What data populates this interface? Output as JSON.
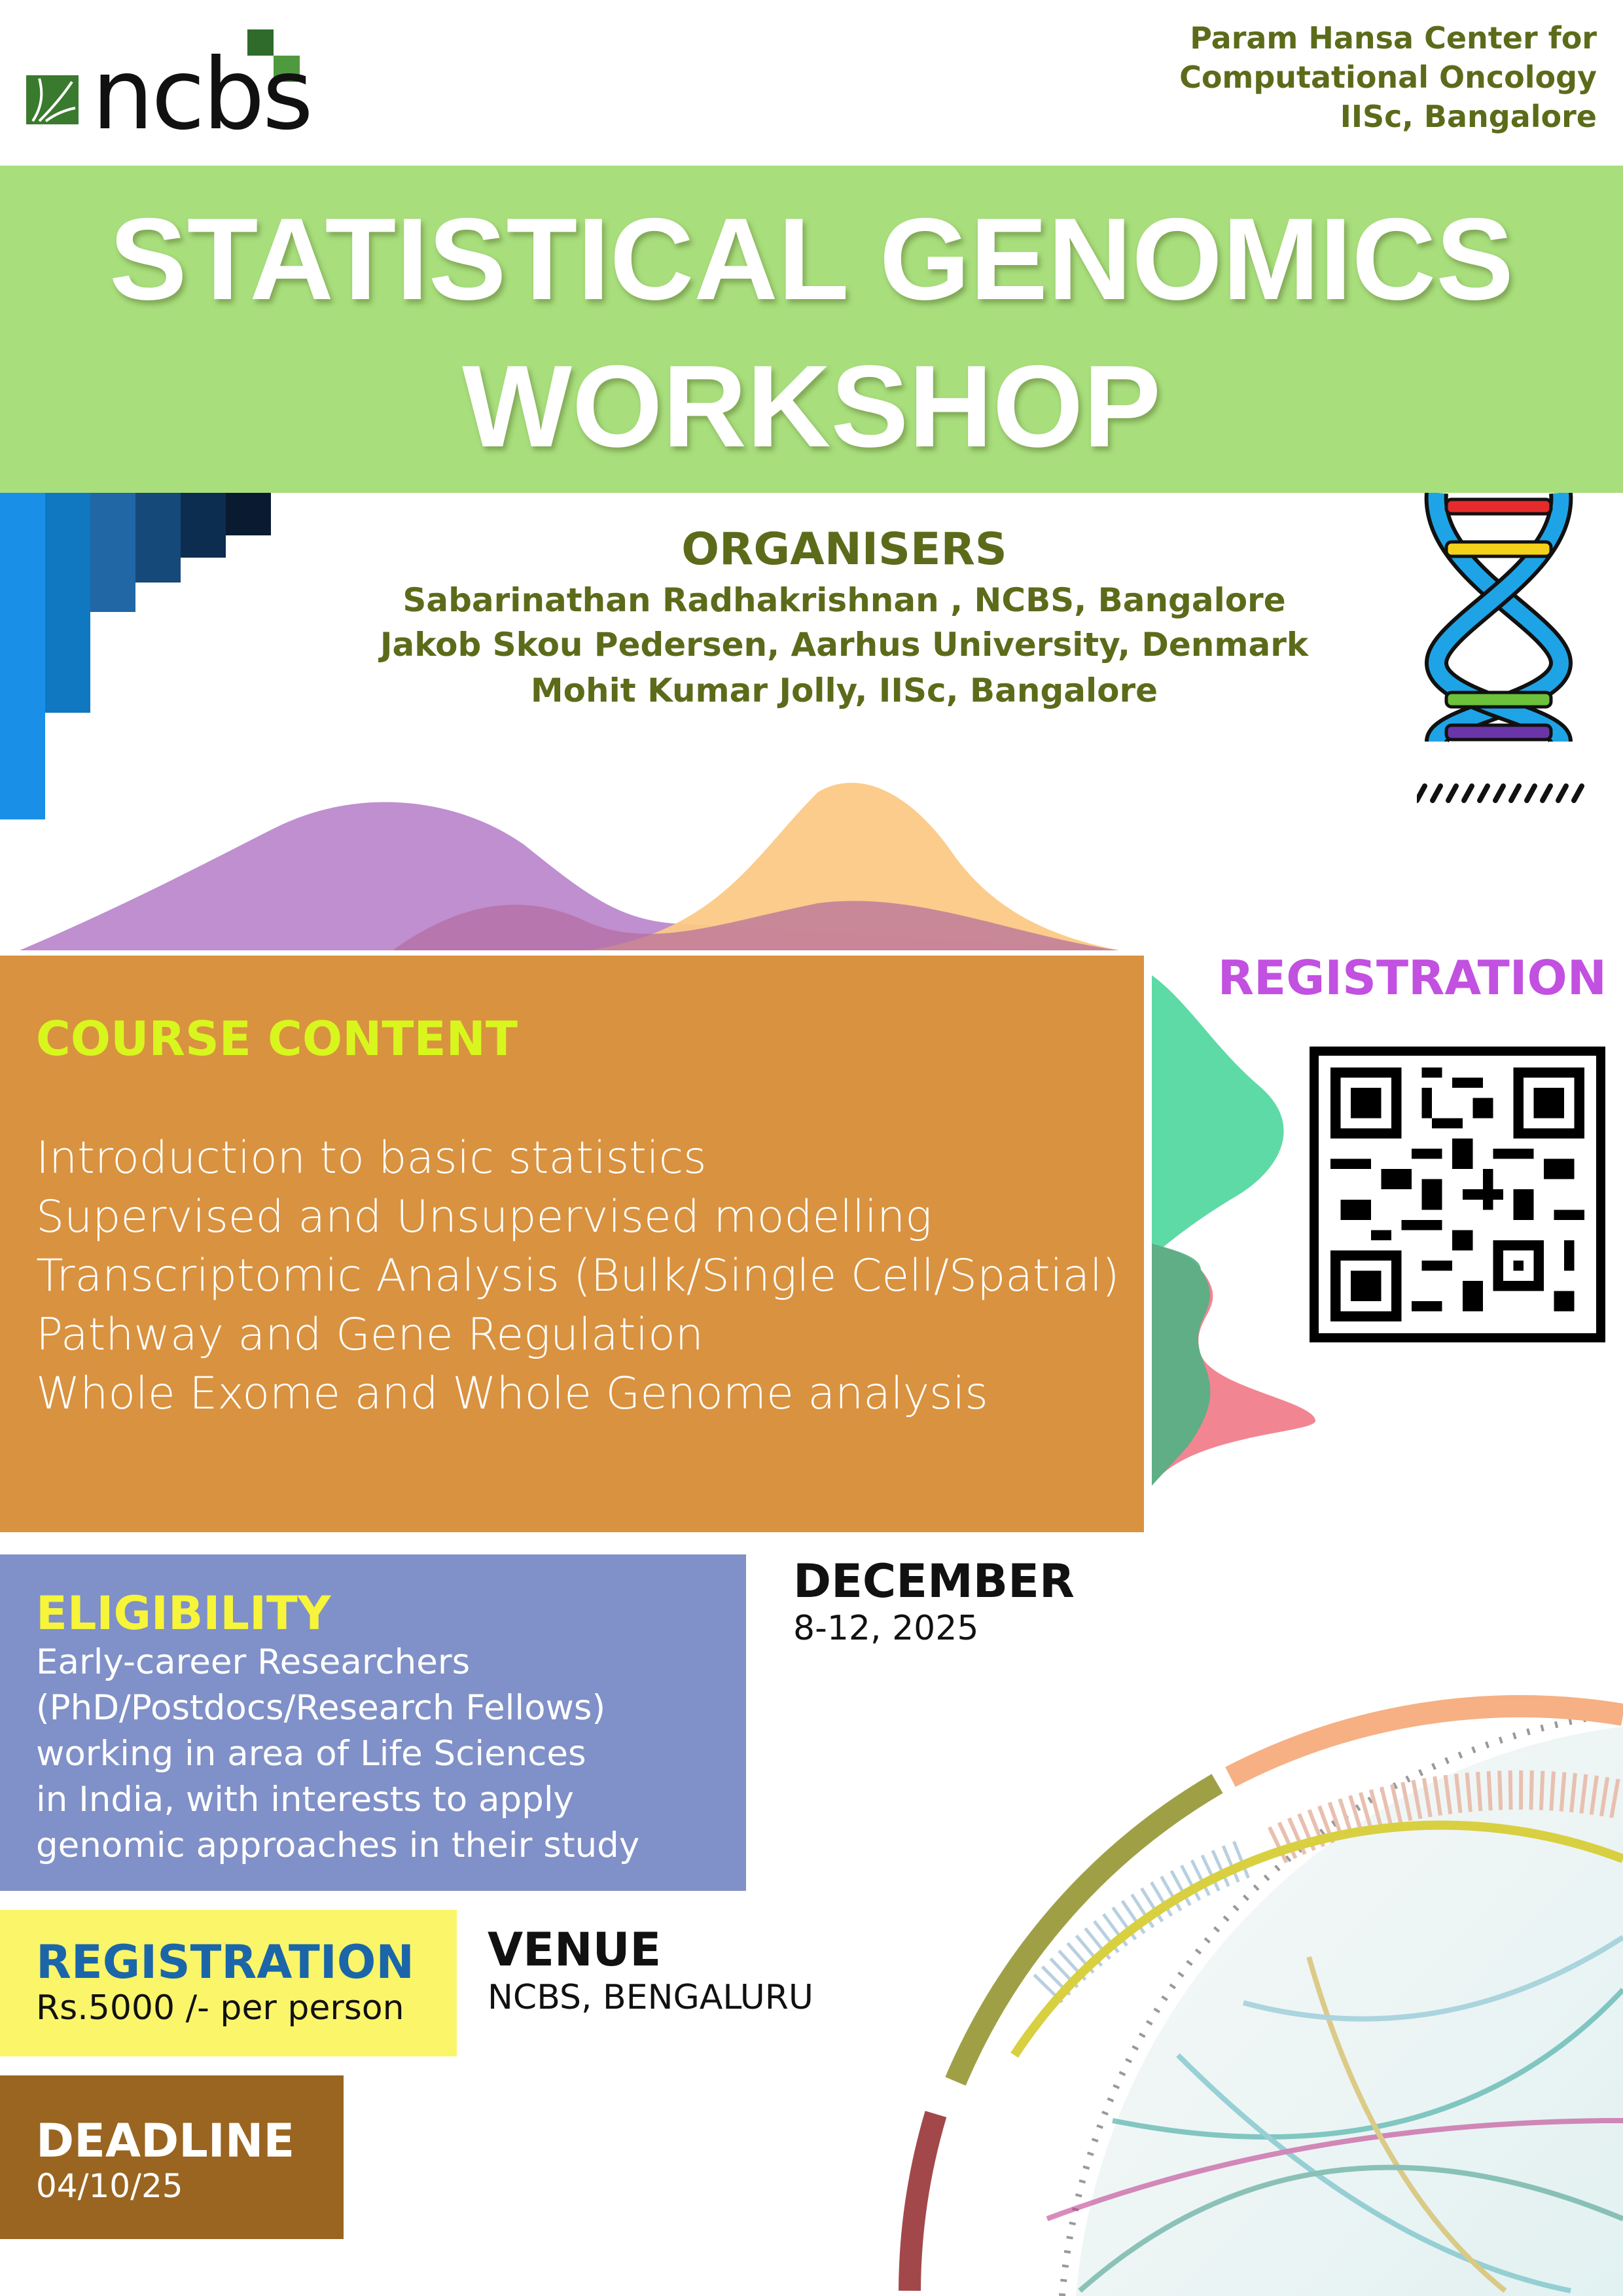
{
  "header": {
    "logo_text": "ncbs",
    "institution_lines": [
      "Param Hansa Center for",
      "Computational Oncology",
      "IISc, Bangalore"
    ]
  },
  "banner": {
    "title_line1": "STATISTICAL GENOMICS",
    "title_line2": "WORKSHOP",
    "color": "#a8de7c"
  },
  "organisers": {
    "heading": "ORGANISERS",
    "names": [
      "Sabarinathan Radhakrishnan , NCBS, Bangalore",
      "Jakob Skou Pedersen, Aarhus University, Denmark",
      "Mohit Kumar Jolly, IISc, Bangalore"
    ]
  },
  "course": {
    "heading": "COURSE CONTENT",
    "items": [
      "Introduction to basic statistics",
      "Supervised and Unsupervised modelling",
      "Transcriptomic Analysis (Bulk/Single Cell/Spatial)",
      "Pathway and Gene Regulation",
      "Whole Exome and Whole Genome analysis"
    ],
    "color": "#d9923f"
  },
  "registration_qr": {
    "heading": "REGISTRATION",
    "icon": "qr-code-icon"
  },
  "eligibility": {
    "heading": "ELIGIBILITY",
    "lines": [
      "Early-career Researchers",
      "(PhD/Postdocs/Research Fellows)",
      "working in area of Life Sciences",
      "in India, with interests to apply",
      "genomic approaches in their study"
    ]
  },
  "dates": {
    "heading": "DECEMBER",
    "value": "8-12, 2025"
  },
  "registration_fee": {
    "heading": "REGISTRATION",
    "value": "Rs.5000 /- per person"
  },
  "venue": {
    "heading": "VENUE",
    "value": "NCBS, BENGALURU"
  },
  "deadline": {
    "heading": "DEADLINE",
    "value": "04/10/25"
  }
}
